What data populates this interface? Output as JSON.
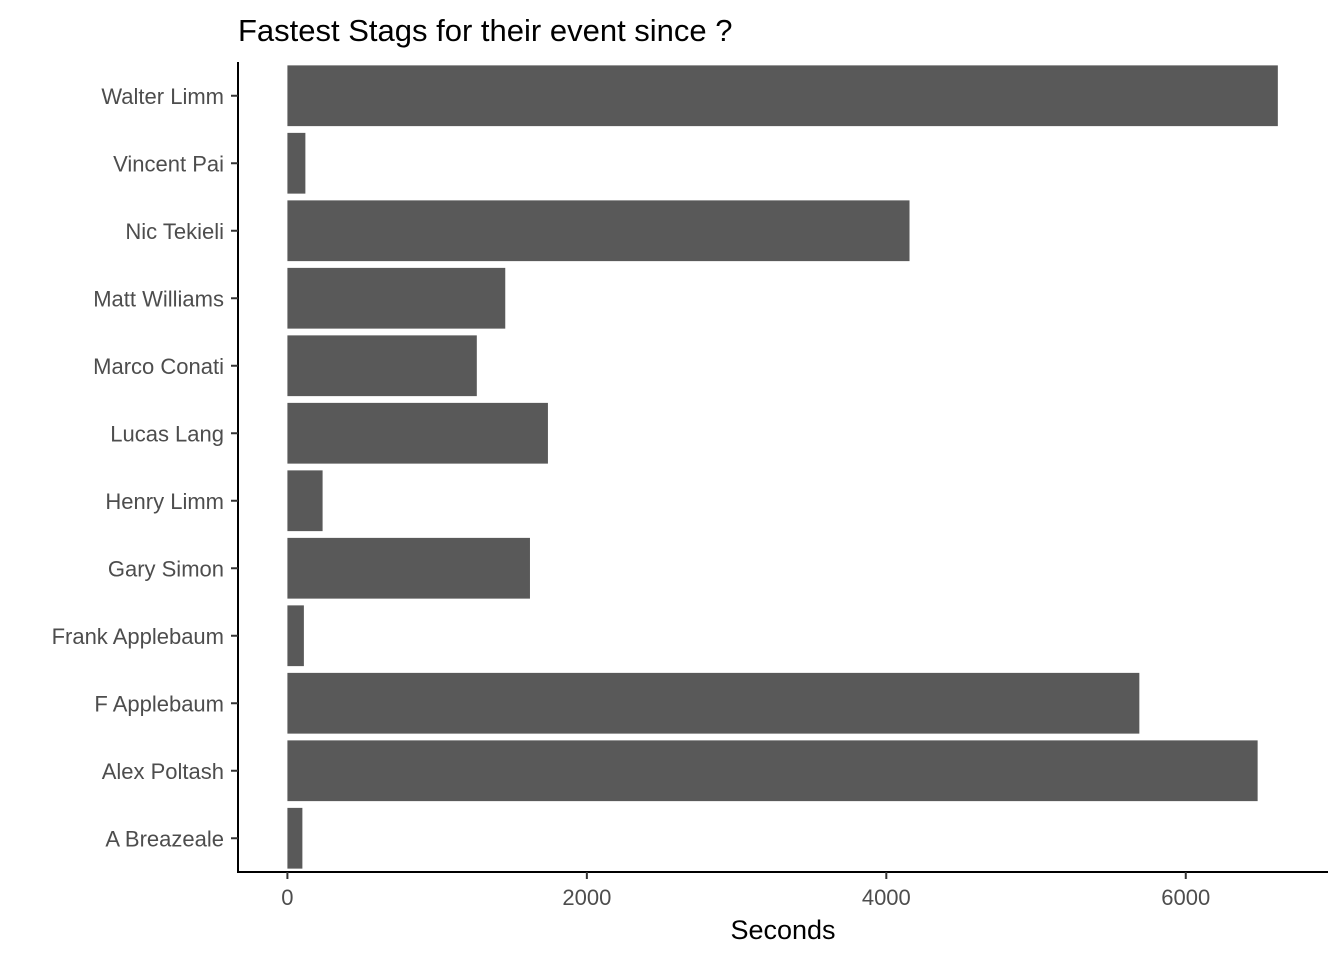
{
  "chart_data": {
    "type": "bar",
    "orientation": "horizontal",
    "title": "Fastest Stags for their event since ?",
    "xlabel": "Seconds",
    "ylabel": "",
    "categories": [
      "A Breazeale",
      "Alex Poltash",
      "F Applebaum",
      "Frank Applebaum",
      "Gary Simon",
      "Henry Limm",
      "Lucas Lang",
      "Marco Conati",
      "Matt Williams",
      "Nic Tekieli",
      "Vincent Pai",
      "Walter Limm"
    ],
    "values": [
      100,
      6480,
      5690,
      110,
      1620,
      235,
      1740,
      1265,
      1455,
      4155,
      120,
      6615
    ],
    "xlim": [
      -330,
      6950
    ],
    "xticks": [
      0,
      2000,
      4000,
      6000
    ],
    "xtick_labels": [
      "0",
      "2000",
      "4000",
      "6000"
    ],
    "grid": false,
    "legend": "none",
    "bar_color": "#595959"
  }
}
